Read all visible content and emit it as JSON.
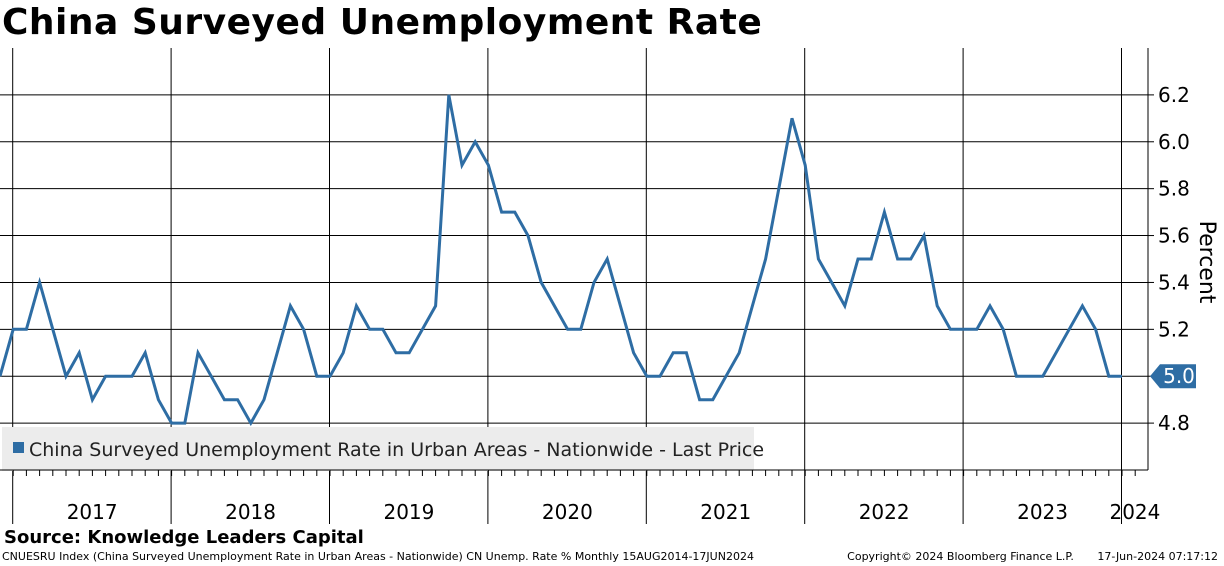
{
  "chart_data": {
    "type": "line",
    "title": "China Surveyed Unemployment Rate",
    "ylabel": "Percent",
    "ylim": [
      4.6,
      6.4
    ],
    "yticks": [
      4.8,
      5.0,
      5.2,
      5.4,
      5.6,
      5.8,
      6.0,
      6.2
    ],
    "ytick_labels": [
      "4.8",
      "5.0",
      "5.2",
      "5.4",
      "5.6",
      "5.8",
      "6.0",
      "6.2"
    ],
    "x_start": "2016-12",
    "years": [
      "2017",
      "2018",
      "2019",
      "2020",
      "2021",
      "2022",
      "2023",
      "2024"
    ],
    "legend": "China Surveyed Unemployment Rate in Urban Areas - Nationwide - Last Price",
    "last_value_label": "5.0",
    "series": [
      {
        "name": "China Surveyed Unemployment Rate in Urban Areas - Nationwide - Last Price",
        "color": "#2e6da4",
        "values": [
          5.0,
          5.2,
          5.2,
          5.4,
          5.2,
          5.0,
          5.1,
          4.9,
          5.0,
          5.0,
          5.0,
          5.1,
          4.9,
          4.8,
          4.8,
          5.1,
          5.0,
          4.9,
          4.9,
          4.8,
          4.9,
          5.1,
          5.3,
          5.2,
          5.0,
          5.0,
          5.1,
          5.3,
          5.2,
          5.2,
          5.1,
          5.1,
          5.2,
          5.3,
          6.2,
          5.9,
          6.0,
          5.9,
          5.7,
          5.7,
          5.6,
          5.4,
          5.3,
          5.2,
          5.2,
          5.4,
          5.5,
          5.3,
          5.1,
          5.0,
          5.0,
          5.1,
          5.1,
          4.9,
          4.9,
          5.0,
          5.1,
          5.3,
          5.5,
          5.8,
          6.1,
          5.9,
          5.5,
          5.4,
          5.3,
          5.5,
          5.5,
          5.7,
          5.5,
          5.5,
          5.6,
          5.3,
          5.2,
          5.2,
          5.2,
          5.3,
          5.2,
          5.0,
          5.0,
          5.0,
          5.1,
          5.2,
          5.3,
          5.2,
          5.0,
          5.0
        ]
      }
    ]
  },
  "source": "Source: Knowledge Leaders Capital",
  "footer": {
    "left": "CNUESRU Index (China Surveyed Unemployment Rate in Urban Areas - Nationwide) CN Unemp. Rate % Monthly 15AUG2014-17JUN2024",
    "copyright": "Copyright© 2024 Bloomberg Finance L.P.",
    "date": "17-Jun-2024 07:17:12"
  },
  "colors": {
    "line": "#2e6da4",
    "legend_bg": "#ececec",
    "grid": "#000000"
  }
}
